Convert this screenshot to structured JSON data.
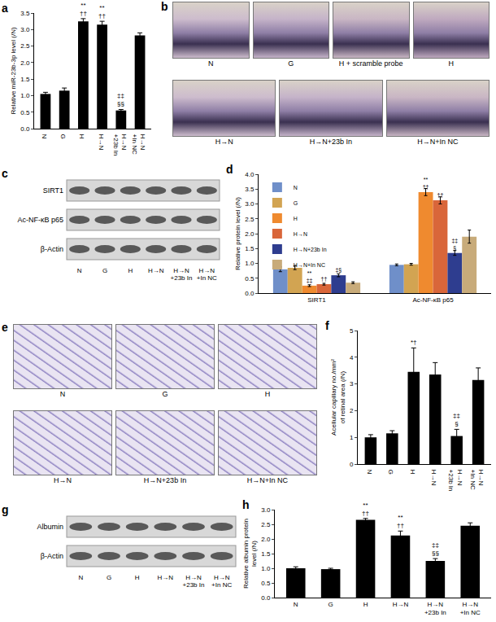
{
  "chart_data": [
    {
      "type": "bar",
      "title": "a",
      "y_label": "Relative miR-23b-3p level (/N)",
      "categories": [
        "N",
        "G",
        "H",
        "H→N",
        "H→N\n+23b In",
        "H→N\n+In NC"
      ],
      "values": [
        1.05,
        1.15,
        3.25,
        3.15,
        0.55,
        2.82
      ],
      "errors": [
        0.05,
        0.08,
        0.08,
        0.1,
        0.03,
        0.08
      ],
      "annotations": [
        null,
        null,
        "**\n††",
        "**\n††",
        "‡‡\n§§",
        null
      ],
      "color": "#000000",
      "ylim": [
        0,
        3.5
      ],
      "yticks": [
        {
          "value": 0,
          "label": "0.0"
        },
        {
          "value": 0.5,
          "label": "0.5"
        },
        {
          "value": 1,
          "label": "1.0"
        },
        {
          "value": 1.5,
          "label": "1.5"
        },
        {
          "value": 2,
          "label": "2.0"
        },
        {
          "value": 2.5,
          "label": "2.5"
        },
        {
          "value": 3,
          "label": "3.0"
        },
        {
          "value": 3.5,
          "label": "3.5"
        }
      ],
      "grid": false
    },
    {
      "type": "bar",
      "title": "d",
      "y_label": "Relative protein level (/N)",
      "categories": [
        "SIRT1",
        "Ac-NF-κB p65"
      ],
      "series": [
        {
          "name": "N",
          "color": "#6f8fc9",
          "values": [
            0.8,
            0.95
          ],
          "errors": [
            0.08,
            0.03
          ],
          "annotations": [
            null,
            null
          ]
        },
        {
          "name": "G",
          "color": "#d2a452",
          "values": [
            0.85,
            0.97
          ],
          "errors": [
            0.06,
            0.03
          ],
          "annotations": [
            null,
            null
          ]
        },
        {
          "name": "H",
          "color": "#ef8a2f",
          "values": [
            0.25,
            3.4
          ],
          "errors": [
            0.03,
            0.12
          ],
          "annotations": [
            "**\n‡‡",
            "**\n††"
          ]
        },
        {
          "name": "H→N",
          "color": "#d9663a",
          "values": [
            0.3,
            3.12
          ],
          "errors": [
            0.03,
            0.12
          ],
          "annotations": [
            "††",
            "††"
          ]
        },
        {
          "name": "H→N+23b In",
          "color": "#2e3d8f",
          "values": [
            0.6,
            1.35
          ],
          "errors": [
            0.05,
            0.08
          ],
          "annotations": [
            "‡§",
            "‡‡\n§"
          ]
        },
        {
          "name": "H→N+In NC",
          "color": "#c8ab7a",
          "values": [
            0.35,
            1.9
          ],
          "errors": [
            0.03,
            0.22
          ],
          "annotations": [
            null,
            null
          ]
        }
      ],
      "legend": "top-left",
      "ylim": [
        0,
        4
      ],
      "yticks": [
        {
          "value": 0,
          "label": "0.0"
        },
        {
          "value": 0.5,
          "label": "0.5"
        },
        {
          "value": 1,
          "label": "1.0"
        },
        {
          "value": 1.5,
          "label": "1.5"
        },
        {
          "value": 2,
          "label": "2.0"
        },
        {
          "value": 2.5,
          "label": "2.5"
        },
        {
          "value": 3,
          "label": "3.0"
        },
        {
          "value": 3.5,
          "label": "3.5"
        },
        {
          "value": 4,
          "label": "4.0"
        }
      ],
      "grid": false
    },
    {
      "type": "bar",
      "title": "f",
      "y_label": "Acellular capillary no./mm²\nof retinal area (/N)",
      "categories": [
        "N",
        "G",
        "H",
        "H→N",
        "H→N\n+23b In",
        "H→N\n+In NC"
      ],
      "values": [
        1.0,
        1.15,
        3.45,
        3.35,
        1.05,
        3.15
      ],
      "errors": [
        0.1,
        0.1,
        0.9,
        0.45,
        0.25,
        0.45
      ],
      "annotations": [
        null,
        null,
        "*†",
        null,
        "‡‡\n§",
        null
      ],
      "color": "#000000",
      "ylim": [
        0,
        5
      ],
      "yticks": [
        0,
        1,
        2,
        3,
        4,
        5
      ],
      "grid": false
    },
    {
      "type": "bar",
      "title": "h",
      "y_label": "Relative albumin protein\nlevel (/N)",
      "categories": [
        "N",
        "G",
        "H",
        "H→N",
        "H→N\n+23b In",
        "H→N\n+In NC"
      ],
      "values": [
        1.0,
        0.97,
        2.65,
        2.12,
        1.25,
        2.45
      ],
      "errors": [
        0.05,
        0.03,
        0.05,
        0.15,
        0.08,
        0.1
      ],
      "annotations": [
        null,
        null,
        "**\n††",
        "**\n††",
        "‡‡\n§§",
        null
      ],
      "color": "#000000",
      "ylim": [
        0,
        3
      ],
      "yticks": [
        {
          "value": 0,
          "label": "0.0"
        },
        {
          "value": 0.5,
          "label": "0.5"
        },
        {
          "value": 1,
          "label": "1.0"
        },
        {
          "value": 1.5,
          "label": "1.5"
        },
        {
          "value": 2,
          "label": "2.0"
        },
        {
          "value": 2.5,
          "label": "2.5"
        },
        {
          "value": 3,
          "label": "3.0"
        }
      ],
      "grid": false
    }
  ],
  "images": [
    {
      "title": "b",
      "labels": [
        "N",
        "G",
        "H + scramble probe",
        "H",
        "H→N",
        "H→N+23b In",
        "H→N+In NC"
      ]
    },
    {
      "title": "e",
      "labels": [
        "N",
        "G",
        "H",
        "H→N",
        "H→N+23b In",
        "H→N+In NC"
      ]
    }
  ],
  "blots": [
    {
      "title": "c",
      "rows": [
        "SIRT1",
        "Ac-NF-κB p65",
        "β-Actin"
      ],
      "lanes": [
        "N",
        "G",
        "H",
        "H→N",
        "H→N\n+23b In",
        "H→N\n+In NC"
      ]
    },
    {
      "title": "g",
      "rows": [
        "Albumin",
        "β-Actin"
      ],
      "lanes": [
        "N",
        "G",
        "H",
        "H→N",
        "H→N\n+23b In",
        "H→N\n+In NC"
      ]
    }
  ]
}
